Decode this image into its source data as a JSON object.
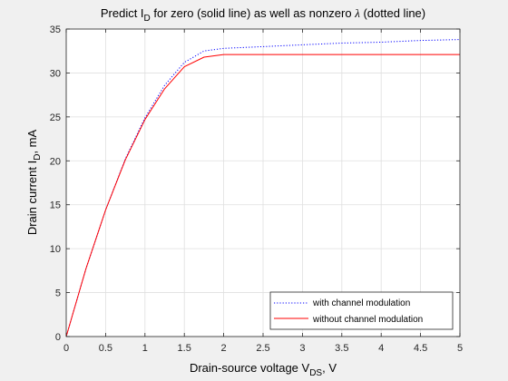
{
  "chart_data": {
    "type": "line",
    "title": "Predict I_D for zero (solid line) as well as nonzero λ (dotted line)",
    "title_parts": {
      "prefix": "Predict I",
      "sub": "D",
      "middle": " for zero (solid line) as well as nonzero ",
      "lambda": "λ",
      "suffix": " (dotted line)"
    },
    "xlabel": "Drain-source voltage V_DS, V",
    "xlabel_parts": {
      "prefix": "Drain-source voltage V",
      "sub": "DS",
      "suffix": ", V"
    },
    "ylabel": "Drain current I_D, mA",
    "ylabel_parts": {
      "prefix": "Drain current I",
      "sub": "D",
      "suffix": ", mA"
    },
    "xlim": [
      0,
      5
    ],
    "ylim": [
      0,
      35
    ],
    "xticks": [
      "0",
      "0.5",
      "1",
      "1.5",
      "2",
      "2.5",
      "3",
      "3.5",
      "4",
      "4.5",
      "5"
    ],
    "yticks": [
      "0",
      "5",
      "10",
      "15",
      "20",
      "25",
      "30",
      "35"
    ],
    "grid": true,
    "legend_position": "bottom-right",
    "series": [
      {
        "name": "with channel modulation",
        "color": "#0000ff",
        "style": "dotted",
        "x": [
          0,
          0.25,
          0.5,
          0.75,
          1.0,
          1.25,
          1.5,
          1.75,
          2.0,
          2.5,
          3.0,
          3.5,
          4.0,
          4.5,
          5.0
        ],
        "y": [
          0,
          7.7,
          14.4,
          20.2,
          24.9,
          28.6,
          31.2,
          32.5,
          32.8,
          33.0,
          33.2,
          33.4,
          33.5,
          33.7,
          33.8
        ]
      },
      {
        "name": "without channel modulation",
        "color": "#ff0000",
        "style": "solid",
        "x": [
          0,
          0.25,
          0.5,
          0.75,
          1.0,
          1.25,
          1.5,
          1.75,
          2.0,
          2.5,
          3.0,
          3.5,
          4.0,
          4.5,
          5.0
        ],
        "y": [
          0,
          7.7,
          14.4,
          20.1,
          24.7,
          28.2,
          30.7,
          31.8,
          32.1,
          32.1,
          32.1,
          32.1,
          32.1,
          32.1,
          32.1
        ]
      }
    ]
  }
}
